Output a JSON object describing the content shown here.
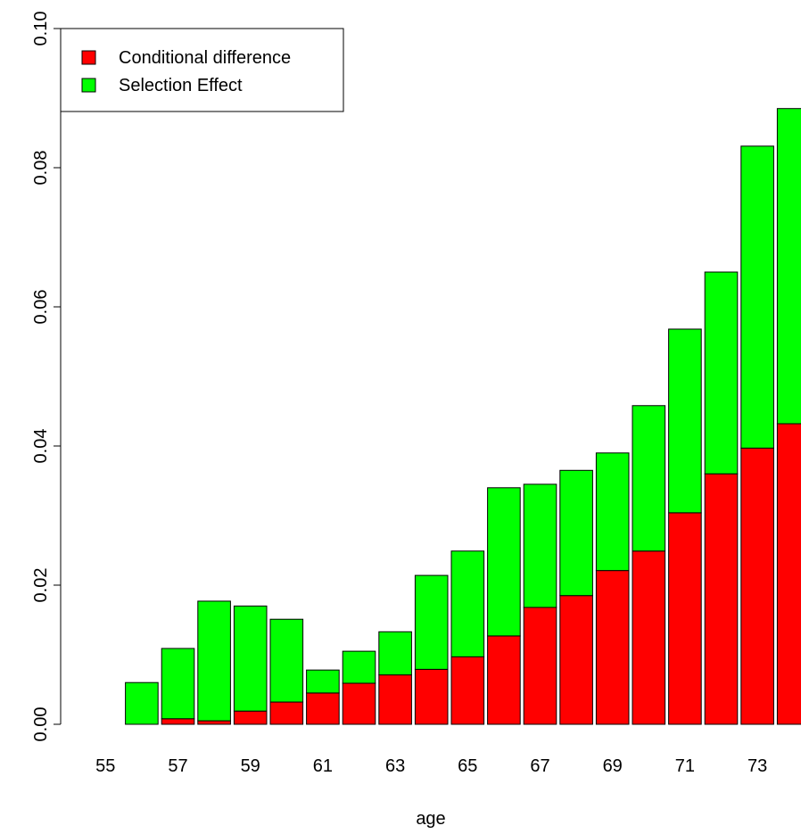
{
  "chart_data": {
    "type": "stacked_bar",
    "x_label": "age",
    "categories": [
      "55",
      null,
      "57",
      null,
      "59",
      null,
      "61",
      null,
      "63",
      null,
      "65",
      null,
      "67",
      null,
      "69",
      null,
      "71",
      null,
      "73",
      null
    ],
    "series": [
      {
        "name": "Conditional difference",
        "color": "#ff0000",
        "values": [
          0,
          0,
          0.0008,
          0.0005,
          0.0019,
          0.0032,
          0.0045,
          0.0059,
          0.0071,
          0.0079,
          0.0097,
          0.0127,
          0.0168,
          0.0185,
          0.0221,
          0.0249,
          0.0304,
          0.036,
          0.0397,
          0.0432
        ]
      },
      {
        "name": "Selection Effect",
        "color": "#00ff00",
        "values": [
          0,
          0.006,
          0.0101,
          0.0172,
          0.0151,
          0.0119,
          0.0033,
          0.0046,
          0.0062,
          0.0135,
          0.0152,
          0.0213,
          0.0177,
          0.018,
          0.0169,
          0.0209,
          0.0264,
          0.029,
          0.0434,
          0.0453
        ]
      }
    ],
    "ylim": [
      0,
      0.1
    ],
    "yticks": [
      {
        "value": 0,
        "label": "0.00"
      },
      {
        "value": 0.02,
        "label": "0.02"
      },
      {
        "value": 0.04,
        "label": "0.04"
      },
      {
        "value": 0.06,
        "label": "0.06"
      },
      {
        "value": 0.08,
        "label": "0.08"
      },
      {
        "value": 0.1,
        "label": "0.10"
      }
    ],
    "legend": "top-left"
  }
}
